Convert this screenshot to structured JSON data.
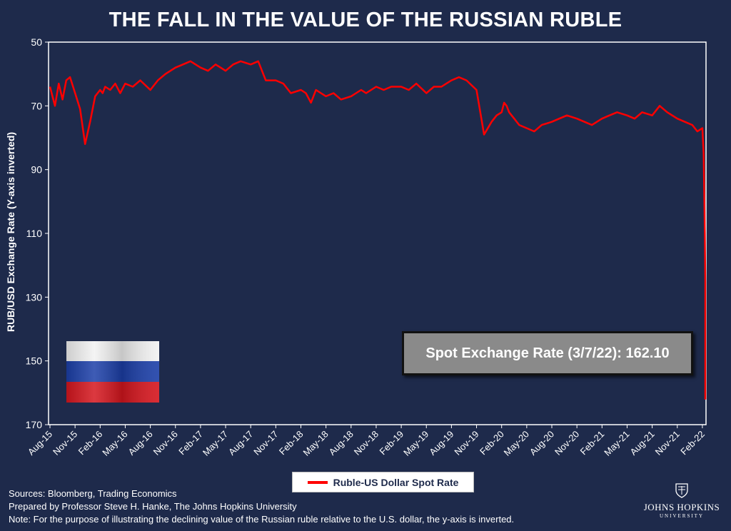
{
  "chart_data": {
    "type": "line",
    "title": "THE FALL IN THE VALUE OF THE RUSSIAN RUBLE",
    "xlabel": "",
    "ylabel": "RUB/USD Exchange Rate (Y-axis inverted)",
    "ylim": [
      50,
      170
    ],
    "y_inverted": true,
    "y_ticks": [
      50,
      70,
      90,
      110,
      130,
      150,
      170
    ],
    "x_ticks": [
      "Aug-15",
      "Nov-15",
      "Feb-16",
      "May-16",
      "Aug-16",
      "Nov-16",
      "Feb-17",
      "May-17",
      "Aug-17",
      "Nov-17",
      "Feb-18",
      "May-18",
      "Aug-18",
      "Nov-18",
      "Feb-19",
      "May-19",
      "Aug-19",
      "Nov-19",
      "Feb-20",
      "May-20",
      "Aug-20",
      "Nov-20",
      "Feb-21",
      "May-21",
      "Aug-21",
      "Nov-21",
      "Feb-22"
    ],
    "series": [
      {
        "name": "Ruble-US Dollar Spot Rate",
        "color": "#ff0000",
        "x": [
          0,
          0.2,
          0.35,
          0.5,
          0.65,
          0.8,
          1.0,
          1.2,
          1.4,
          1.6,
          1.8,
          2.0,
          2.1,
          2.2,
          2.4,
          2.6,
          2.8,
          3.0,
          3.3,
          3.6,
          4.0,
          4.3,
          4.6,
          5.0,
          5.3,
          5.6,
          6.0,
          6.3,
          6.6,
          6.8,
          7.0,
          7.3,
          7.6,
          8.0,
          8.3,
          8.6,
          9.0,
          9.3,
          9.6,
          10.0,
          10.2,
          10.4,
          10.6,
          10.8,
          11.0,
          11.3,
          11.6,
          12.0,
          12.2,
          12.4,
          12.6,
          12.8,
          13.0,
          13.3,
          13.6,
          14.0,
          14.3,
          14.6,
          15.0,
          15.3,
          15.6,
          16.0,
          16.3,
          16.6,
          17.0,
          17.3,
          17.6,
          17.8,
          18.0,
          18.1,
          18.2,
          18.3,
          18.5,
          18.7,
          19.0,
          19.3,
          19.6,
          20.0,
          20.3,
          20.6,
          21.0,
          21.3,
          21.6,
          22.0,
          22.3,
          22.6,
          23.0,
          23.3,
          23.6,
          24.0,
          24.3,
          24.6,
          25.0,
          25.3,
          25.6,
          25.8,
          26.0,
          26.05,
          26.1,
          26.15,
          26.2,
          26.25
        ],
        "values": [
          64,
          70,
          63,
          68,
          62,
          61,
          66,
          71,
          82,
          75,
          67,
          65,
          66,
          64,
          65,
          63,
          66,
          63,
          64,
          62,
          65,
          62,
          60,
          58,
          57,
          56,
          58,
          59,
          57,
          58,
          59,
          57,
          56,
          57,
          56,
          62,
          62,
          63,
          66,
          65,
          66,
          69,
          65,
          66,
          67,
          66,
          68,
          67,
          66,
          65,
          66,
          65,
          64,
          65,
          64,
          64,
          65,
          63,
          66,
          64,
          64,
          62,
          61,
          62,
          65,
          79,
          75,
          73,
          72,
          69,
          70,
          72,
          74,
          76,
          77,
          78,
          76,
          75,
          74,
          73,
          74,
          75,
          76,
          74,
          73,
          72,
          73,
          74,
          72,
          73,
          70,
          72,
          74,
          75,
          76,
          78,
          77,
          85,
          110,
          125,
          150,
          162.1
        ]
      }
    ],
    "annotation": "Spot Exchange Rate (3/7/22): 162.10"
  },
  "legend": {
    "label": "Ruble-US Dollar Spot Rate"
  },
  "footer": {
    "sources": "Sources: Bloomberg, Trading Economics",
    "prepared": "Prepared by Professor Steve H. Hanke, The Johns Hopkins University",
    "note": "Note: For the purpose of illustrating the declining value of the Russian ruble relative to the U.S. dollar, the y-axis is inverted."
  },
  "logo": {
    "name": "JOHNS HOPKINS",
    "sub": "UNIVERSITY"
  },
  "colors": {
    "background": "#1e2a4b",
    "plot_bg": "#1e2a4b",
    "line": "#ff0000",
    "annotation_box": "#8a8a8a"
  }
}
